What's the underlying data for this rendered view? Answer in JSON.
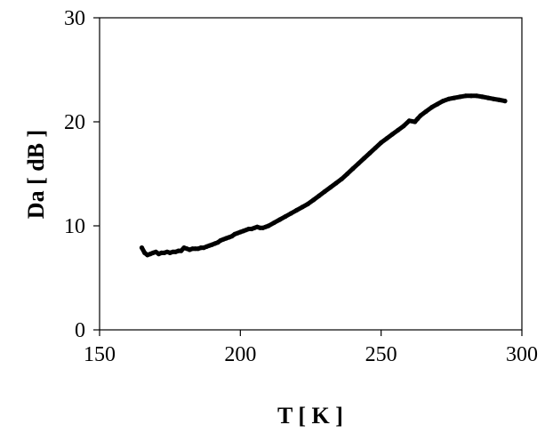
{
  "chart_data": {
    "type": "scatter",
    "title": "",
    "xlabel": "T [ K ]",
    "ylabel": "Da [ dB ]",
    "xlim": [
      150,
      300
    ],
    "ylim": [
      0,
      30
    ],
    "xticks": [
      150,
      200,
      250,
      300
    ],
    "yticks": [
      0,
      10,
      20,
      30
    ],
    "xtick_labels": [
      "150",
      "200",
      "250",
      "300"
    ],
    "ytick_labels": [
      "0",
      "10",
      "20",
      "30"
    ],
    "grid": false,
    "legend": "none",
    "series": [
      {
        "marker_color": "#000000",
        "x": [
          165,
          166,
          167,
          168,
          169,
          170,
          171,
          172,
          173,
          174,
          175,
          176,
          177,
          178,
          179,
          180,
          181,
          182,
          183,
          184,
          185,
          186,
          187,
          188,
          189,
          190,
          191,
          192,
          193,
          194,
          195,
          196,
          197,
          198,
          199,
          200,
          201,
          202,
          203,
          204,
          205,
          206,
          207,
          208,
          209,
          210,
          212,
          214,
          216,
          218,
          220,
          222,
          224,
          226,
          228,
          230,
          232,
          234,
          236,
          238,
          240,
          242,
          244,
          246,
          248,
          250,
          252,
          254,
          256,
          258,
          260,
          262,
          263,
          264,
          266,
          268,
          270,
          272,
          274,
          276,
          278,
          280,
          282,
          284,
          286,
          288,
          290,
          292,
          294
        ],
        "y": [
          7.9,
          7.4,
          7.2,
          7.3,
          7.4,
          7.5,
          7.3,
          7.4,
          7.4,
          7.5,
          7.4,
          7.5,
          7.5,
          7.6,
          7.6,
          7.9,
          7.8,
          7.7,
          7.8,
          7.8,
          7.8,
          7.9,
          7.9,
          8.0,
          8.1,
          8.2,
          8.3,
          8.4,
          8.6,
          8.7,
          8.8,
          8.9,
          9.0,
          9.2,
          9.3,
          9.4,
          9.5,
          9.6,
          9.7,
          9.7,
          9.8,
          9.9,
          9.8,
          9.8,
          9.9,
          10.0,
          10.3,
          10.6,
          10.9,
          11.2,
          11.5,
          11.8,
          12.1,
          12.5,
          12.9,
          13.3,
          13.7,
          14.1,
          14.5,
          15.0,
          15.5,
          16.0,
          16.5,
          17.0,
          17.5,
          18.0,
          18.4,
          18.8,
          19.2,
          19.6,
          20.1,
          20.0,
          20.3,
          20.6,
          21.0,
          21.4,
          21.7,
          22.0,
          22.2,
          22.3,
          22.4,
          22.5,
          22.5,
          22.5,
          22.4,
          22.3,
          22.2,
          22.1,
          22.0
        ]
      }
    ]
  }
}
